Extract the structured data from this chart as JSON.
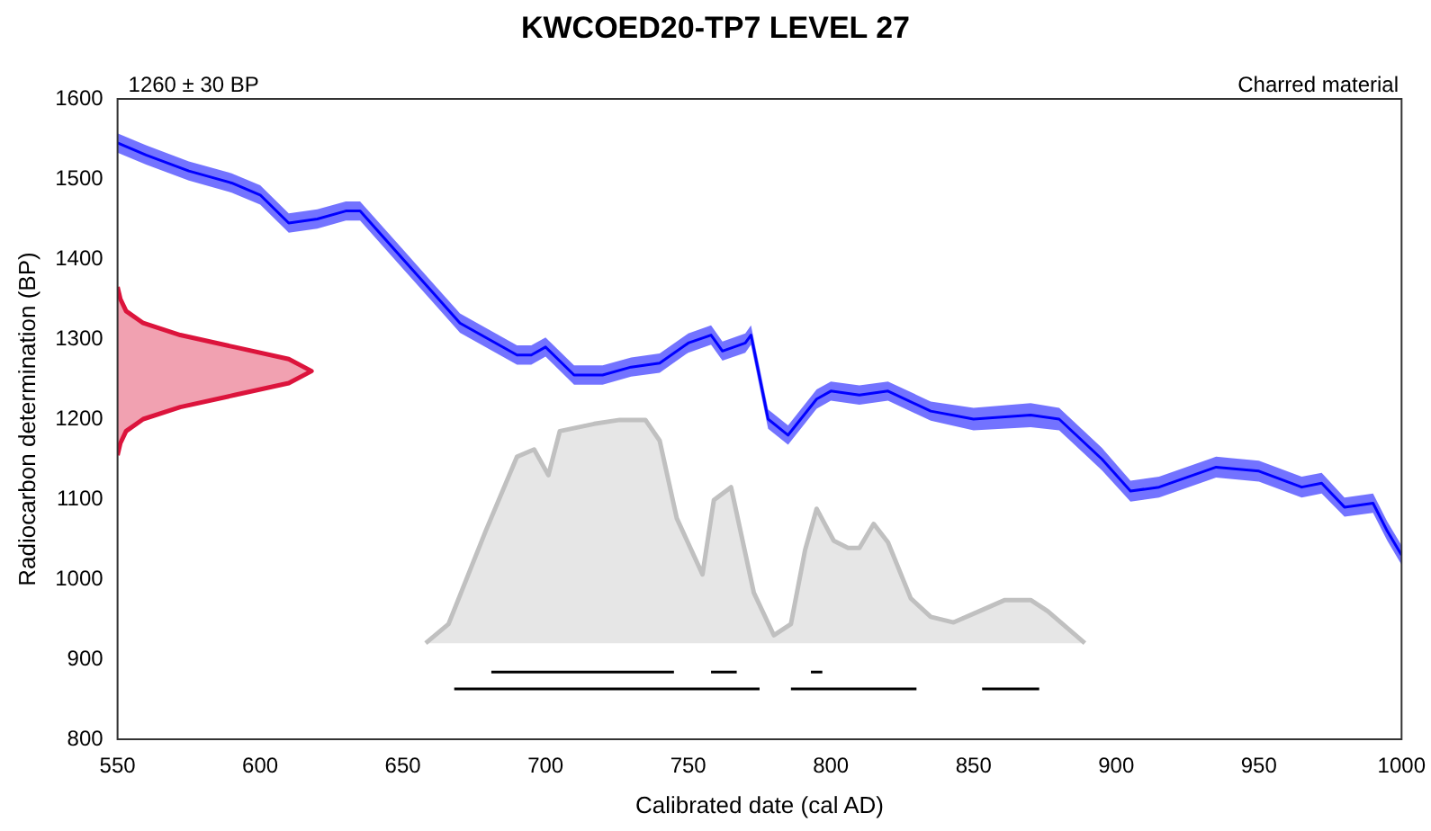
{
  "chart_data": {
    "type": "line",
    "title": "KWCOED20-TP7 LEVEL 27",
    "xlabel": "Calibrated date (cal AD)",
    "ylabel": "Radiocarbon determination (BP)",
    "annotations": [
      "1260 ± 30 BP",
      "Charred material"
    ],
    "xlim": [
      550,
      1000
    ],
    "xticks": [
      550,
      600,
      650,
      700,
      750,
      800,
      850,
      900,
      950,
      1000
    ],
    "ylim": [
      800,
      1600
    ],
    "yticks": [
      800,
      900,
      1000,
      1100,
      1200,
      1300,
      1400,
      1500,
      1600
    ],
    "grid": false,
    "legend": false,
    "marker": "none",
    "series": [
      {
        "type": "line",
        "color": "#0000ff",
        "x": [
          550,
          560,
          575,
          590,
          600,
          610,
          620,
          630,
          635,
          650,
          660,
          670,
          680,
          690,
          695,
          700,
          710,
          720,
          730,
          740,
          750,
          758,
          762,
          770,
          772,
          778,
          785,
          795,
          800,
          810,
          820,
          835,
          850,
          870,
          880,
          895,
          905,
          915,
          935,
          950,
          965,
          972,
          980,
          990,
          995,
          1000
        ],
        "values": [
          1545,
          1530,
          1510,
          1495,
          1480,
          1445,
          1450,
          1460,
          1460,
          1400,
          1360,
          1320,
          1300,
          1280,
          1280,
          1290,
          1255,
          1255,
          1265,
          1270,
          1295,
          1305,
          1285,
          1295,
          1305,
          1200,
          1180,
          1225,
          1235,
          1230,
          1235,
          1210,
          1200,
          1205,
          1200,
          1150,
          1110,
          1115,
          1140,
          1135,
          1115,
          1120,
          1090,
          1095,
          1060,
          1030
        ],
        "lower": [
          1533,
          1518,
          1498,
          1483,
          1468,
          1433,
          1438,
          1448,
          1448,
          1388,
          1348,
          1308,
          1288,
          1268,
          1268,
          1278,
          1243,
          1243,
          1253,
          1258,
          1283,
          1293,
          1273,
          1283,
          1293,
          1188,
          1168,
          1213,
          1223,
          1218,
          1223,
          1198,
          1186,
          1190,
          1186,
          1136,
          1097,
          1102,
          1127,
          1122,
          1102,
          1107,
          1078,
          1083,
          1048,
          1018
        ],
        "upper": [
          1557,
          1542,
          1522,
          1507,
          1492,
          1457,
          1462,
          1472,
          1472,
          1412,
          1372,
          1332,
          1312,
          1292,
          1292,
          1302,
          1267,
          1267,
          1277,
          1282,
          1307,
          1317,
          1297,
          1307,
          1317,
          1212,
          1192,
          1237,
          1247,
          1242,
          1247,
          1222,
          1214,
          1220,
          1214,
          1164,
          1123,
          1128,
          1153,
          1148,
          1128,
          1133,
          1102,
          1107,
          1072,
          1042
        ]
      },
      {
        "type": "area",
        "color": "#dc143c",
        "x": [
          550,
          551,
          553,
          559,
          572,
          591,
          610,
          618,
          610,
          591,
          572,
          559,
          553,
          551,
          550
        ],
        "values": [
          1155,
          1170,
          1185,
          1200,
          1215,
          1230,
          1245,
          1260,
          1275,
          1290,
          1305,
          1320,
          1335,
          1350,
          1365
        ]
      },
      {
        "type": "area",
        "color": "#c0c0c0",
        "x": [
          658,
          666,
          679,
          690,
          696,
          701,
          705,
          717,
          726,
          735,
          740,
          746,
          755,
          759,
          765,
          773,
          780,
          786,
          791,
          795,
          801,
          806,
          810,
          815,
          820,
          828,
          835,
          843,
          852,
          861,
          870,
          876,
          889
        ],
        "values": [
          920,
          944,
          1060,
          1153,
          1162,
          1130,
          1185,
          1194,
          1199,
          1199,
          1173,
          1076,
          1006,
          1099,
          1115,
          983,
          930,
          944,
          1037,
          1088,
          1048,
          1039,
          1039,
          1069,
          1046,
          976,
          953,
          946,
          960,
          974,
          974,
          960,
          920
        ]
      },
      {
        "type": "line",
        "color": "#000000",
        "x": [
          681,
          745,
          746,
          758,
          767,
          768,
          793,
          797
        ],
        "values": [
          884,
          884,
          null,
          884,
          884,
          null,
          884,
          884
        ]
      },
      {
        "type": "line",
        "color": "#000000",
        "x": [
          668,
          775,
          776,
          786,
          830,
          831,
          853,
          873
        ],
        "values": [
          863,
          863,
          null,
          863,
          863,
          null,
          863,
          863
        ]
      }
    ]
  }
}
